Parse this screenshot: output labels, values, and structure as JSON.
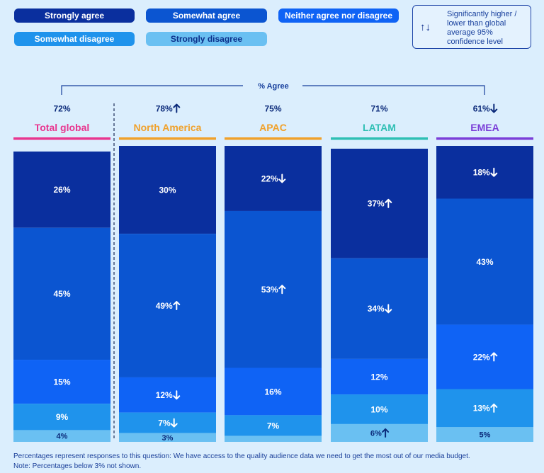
{
  "legend": {
    "items": [
      {
        "label": "Strongly agree",
        "color": "#0a2f9e"
      },
      {
        "label": "Somewhat agree",
        "color": "#0b55d1"
      },
      {
        "label": "Neither agree nor disagree",
        "color": "#0f63f5"
      },
      {
        "label": "Somewhat disagree",
        "color": "#1f93ec"
      },
      {
        "label": "Strongly disagree",
        "color": "#6ac0f2"
      }
    ],
    "significance_symbols": "↑↓",
    "significance_text": "Significantly higher / lower than global average 95% confidence level"
  },
  "header_label": "% Agree",
  "footnotes": [
    "Percentages represent responses to this question: We have access to the quality audience data we need to get the most out of our media budget.",
    "Note: Percentages below 3% not shown."
  ],
  "chart_data": {
    "type": "bar",
    "stacked": true,
    "categories": [
      "Total global",
      "North America",
      "APAC",
      "LATAM",
      "EMEA"
    ],
    "category_colors": [
      "#e8368f",
      "#f0a12b",
      "#f0a12b",
      "#2fbfb4",
      "#7b3fd8"
    ],
    "agree_totals": [
      "72%",
      "78%",
      "75%",
      "71%",
      "61%"
    ],
    "agree_sig": [
      "",
      "up",
      "",
      "",
      "down"
    ],
    "series": [
      {
        "name": "Strongly agree",
        "values": [
          26,
          30,
          22,
          37,
          18
        ],
        "sig": [
          "",
          "",
          "down",
          "up",
          "down"
        ]
      },
      {
        "name": "Somewhat agree",
        "values": [
          45,
          49,
          53,
          34,
          43
        ],
        "sig": [
          "",
          "up",
          "up",
          "down",
          ""
        ]
      },
      {
        "name": "Neither agree nor disagree",
        "values": [
          15,
          12,
          16,
          12,
          22
        ],
        "sig": [
          "",
          "down",
          "",
          "",
          "up"
        ]
      },
      {
        "name": "Somewhat disagree",
        "values": [
          9,
          7,
          7,
          10,
          13
        ],
        "sig": [
          "",
          "down",
          "",
          "",
          "up"
        ]
      },
      {
        "name": "Strongly disagree",
        "values": [
          4,
          3,
          2,
          6,
          5
        ],
        "labels": [
          "4%",
          "3%",
          "",
          "6%",
          "5%"
        ],
        "sig": [
          "",
          "",
          "",
          "up",
          ""
        ]
      }
    ],
    "ylim": [
      0,
      100
    ]
  }
}
